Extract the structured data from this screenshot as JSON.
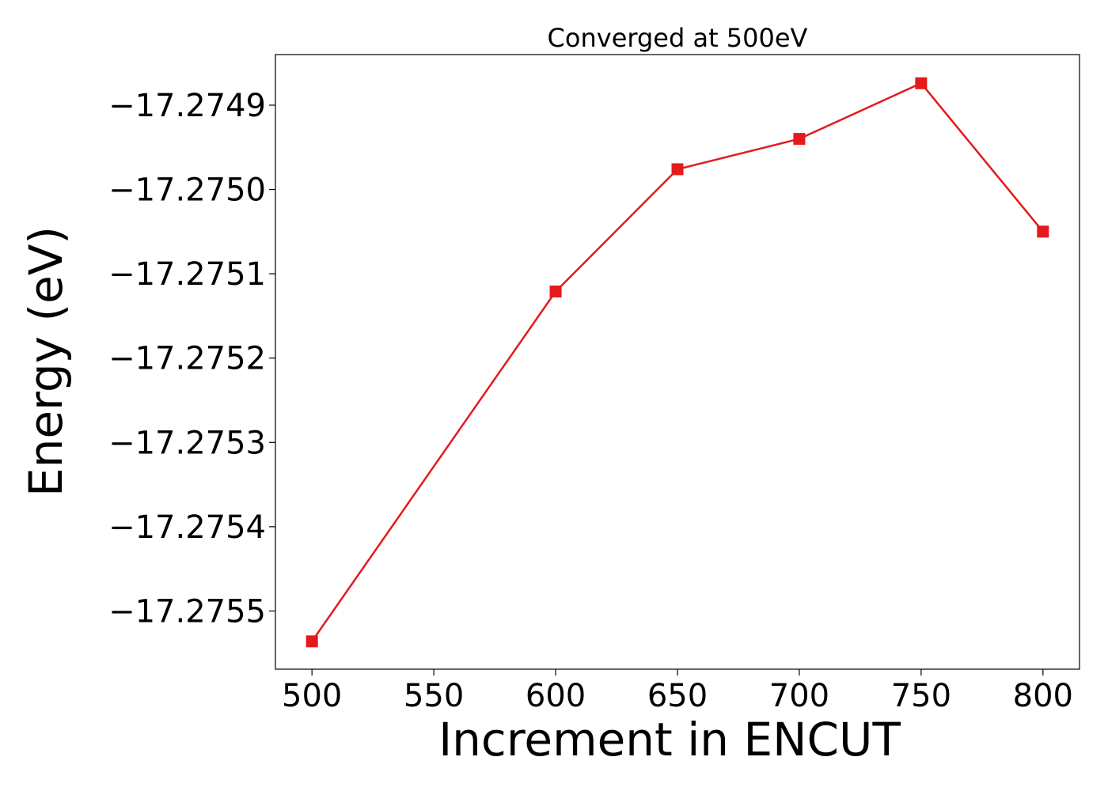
{
  "chart_data": {
    "type": "line",
    "title": "Converged at 500eV",
    "xlabel": "Increment in ENCUT",
    "ylabel": "Energy (eV)",
    "x": [
      500,
      600,
      650,
      700,
      750,
      800
    ],
    "series": [
      {
        "values": [
          -17.275536,
          -17.275121,
          -17.274976,
          -17.27494,
          -17.274874,
          -17.27505
        ],
        "color": "#e41a1c",
        "marker": "square"
      }
    ],
    "xlim": [
      485,
      815
    ],
    "ylim": [
      -17.275569,
      -17.27484
    ],
    "xticks": [
      500,
      550,
      600,
      650,
      700,
      750,
      800
    ],
    "xtick_labels": [
      "500",
      "550",
      "600",
      "650",
      "700",
      "750",
      "800"
    ],
    "yticks": [
      -17.2749,
      -17.275,
      -17.2751,
      -17.2752,
      -17.2753,
      -17.2754,
      -17.2755
    ],
    "ytick_labels": [
      "−17.2749",
      "−17.2750",
      "−17.2751",
      "−17.2752",
      "−17.2753",
      "−17.2754",
      "−17.2755"
    ],
    "grid": false,
    "legend": "none"
  }
}
